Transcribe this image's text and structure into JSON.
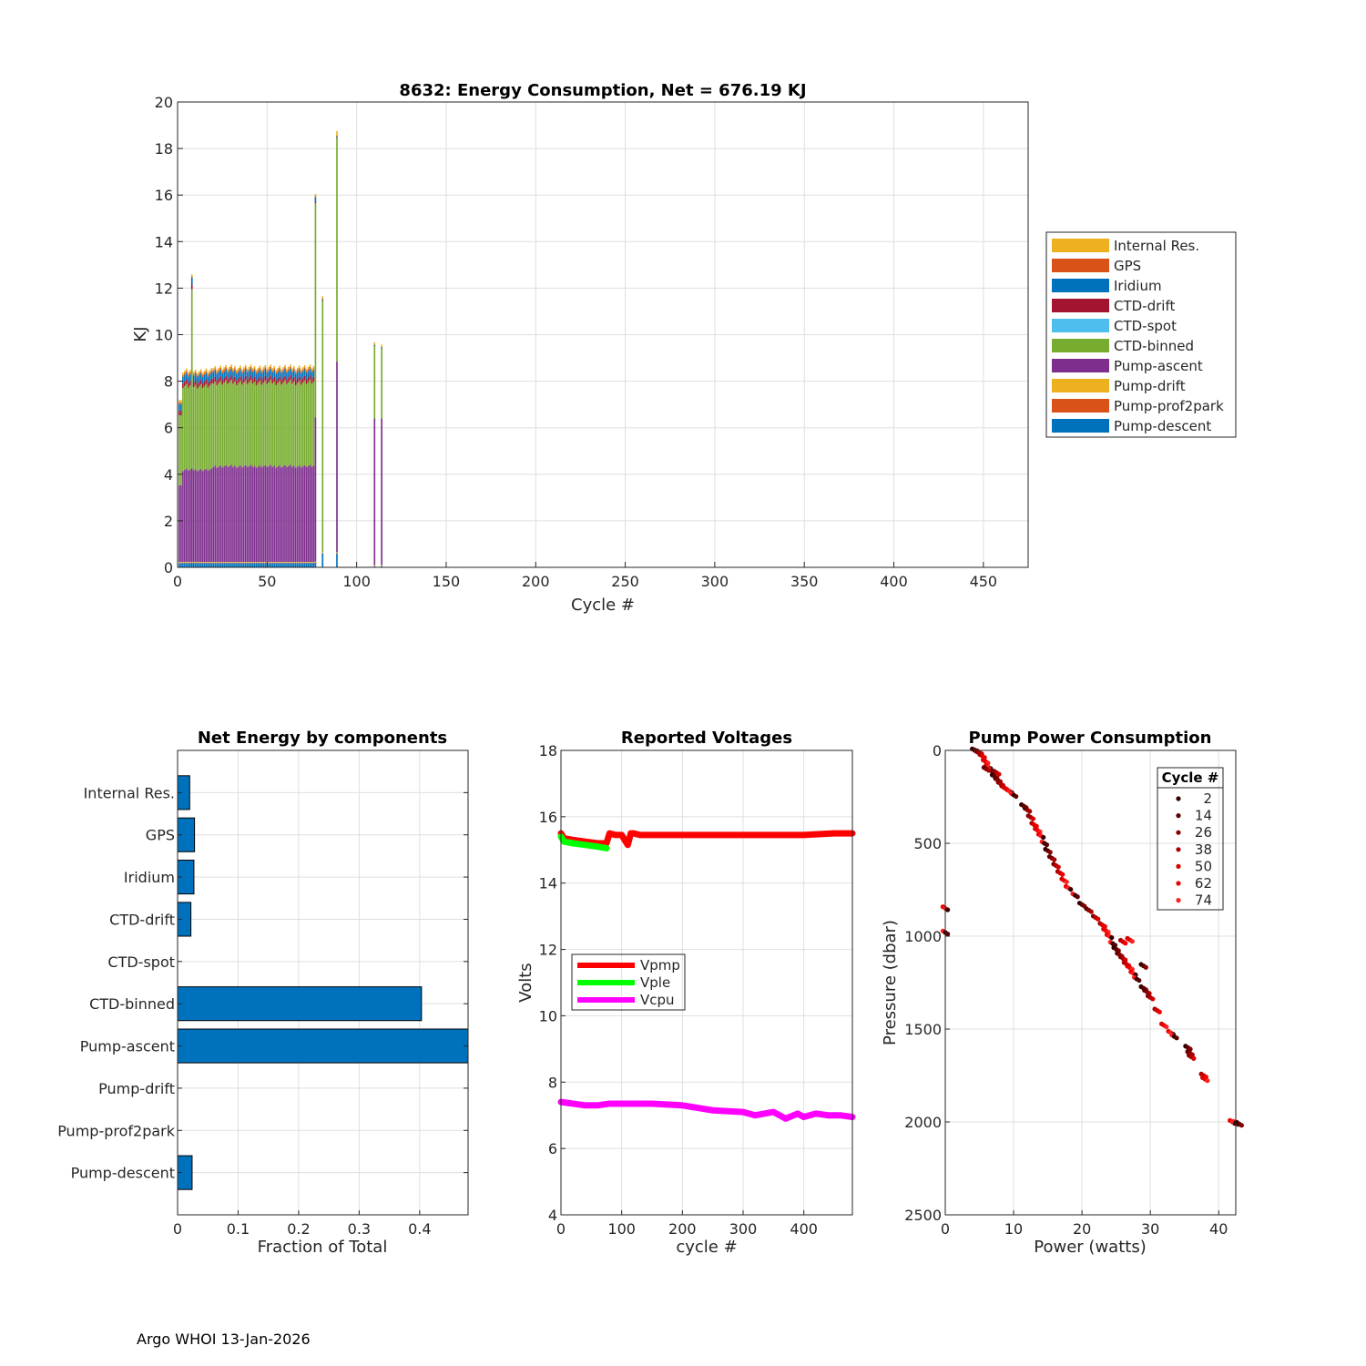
{
  "footer": "Argo WHOI 13-Jan-2026",
  "chart_data": [
    {
      "type": "bar",
      "stacked": true,
      "title": "8632: Energy Consumption,  Net = 676.19 KJ",
      "xlabel": "Cycle #",
      "ylabel": "KJ",
      "xlim": [
        0,
        475
      ],
      "ylim": [
        0,
        20
      ],
      "xticks": [
        0,
        50,
        100,
        150,
        200,
        250,
        300,
        350,
        400,
        450
      ],
      "yticks": [
        0,
        2,
        4,
        6,
        8,
        10,
        12,
        14,
        16,
        18,
        20
      ],
      "legend_position": "outside-right",
      "series": [
        {
          "name": "Internal Res.",
          "color": "#EDB120"
        },
        {
          "name": "GPS",
          "color": "#D95319"
        },
        {
          "name": "Iridium",
          "color": "#0072BD"
        },
        {
          "name": "CTD-drift",
          "color": "#A2142F"
        },
        {
          "name": "CTD-spot",
          "color": "#4DBEEE"
        },
        {
          "name": "CTD-binned",
          "color": "#77AC30"
        },
        {
          "name": "Pump-ascent",
          "color": "#7E2F8E"
        },
        {
          "name": "Pump-drift",
          "color": "#EDB120"
        },
        {
          "name": "Pump-prof2park",
          "color": "#D95319"
        },
        {
          "name": "Pump-descent",
          "color": "#0072BD"
        }
      ],
      "spikes": [
        {
          "cycle": 8,
          "total": 12.5
        },
        {
          "cycle": 77,
          "total": 16.0
        },
        {
          "cycle": 81,
          "total": 11.6
        },
        {
          "cycle": 89,
          "total": 18.5
        },
        {
          "cycle": 110,
          "total": 9.6
        },
        {
          "cycle": 114,
          "total": 9.5
        }
      ]
    },
    {
      "type": "bar",
      "orientation": "horizontal",
      "title": "Net Energy by components",
      "xlabel": "Fraction of Total",
      "xlim": [
        0,
        0.48
      ],
      "xticks": [
        "0",
        "0.1",
        "0.2",
        "0.3",
        "0.4"
      ],
      "categories": [
        "Internal Res.",
        "GPS",
        "Iridium",
        "CTD-drift",
        "CTD-spot",
        "CTD-binned",
        "Pump-ascent",
        "Pump-drift",
        "Pump-prof2park",
        "Pump-descent"
      ],
      "values": [
        0.02,
        0.028,
        0.027,
        0.022,
        0,
        0.403,
        0.48,
        0,
        0,
        0.024
      ],
      "color": "#0072BD"
    },
    {
      "type": "line",
      "title": "Reported Voltages",
      "xlabel": "cycle #",
      "ylabel": "Volts",
      "xlim": [
        0,
        480
      ],
      "ylim": [
        4,
        18
      ],
      "xticks": [
        0,
        100,
        200,
        300,
        400
      ],
      "yticks": [
        4,
        6,
        8,
        10,
        12,
        14,
        16,
        18
      ],
      "legend_position": "center-left",
      "series": [
        {
          "name": "Vpmp",
          "color": "#FF0000",
          "x": [
            0,
            5,
            20,
            40,
            60,
            75,
            80,
            90,
            100,
            110,
            115,
            120,
            130,
            150,
            200,
            250,
            300,
            350,
            400,
            450,
            480
          ],
          "y": [
            15.5,
            15.35,
            15.3,
            15.25,
            15.2,
            15.2,
            15.5,
            15.45,
            15.45,
            15.15,
            15.5,
            15.5,
            15.45,
            15.45,
            15.45,
            15.45,
            15.45,
            15.45,
            15.45,
            15.5,
            15.5
          ]
        },
        {
          "name": "Vple",
          "color": "#00FF00",
          "x": [
            0,
            5,
            20,
            40,
            60,
            75
          ],
          "y": [
            15.4,
            15.25,
            15.2,
            15.15,
            15.1,
            15.05
          ]
        },
        {
          "name": "Vcpu",
          "color": "#FF00FF",
          "x": [
            0,
            20,
            40,
            60,
            80,
            100,
            120,
            150,
            200,
            250,
            300,
            320,
            350,
            370,
            390,
            400,
            420,
            440,
            460,
            480
          ],
          "y": [
            7.4,
            7.35,
            7.3,
            7.3,
            7.35,
            7.35,
            7.35,
            7.35,
            7.3,
            7.15,
            7.1,
            7.0,
            7.1,
            6.9,
            7.05,
            6.95,
            7.05,
            7.0,
            7.0,
            6.95
          ]
        }
      ]
    },
    {
      "type": "scatter",
      "title": "Pump Power Consumption",
      "xlabel": "Power (watts)",
      "ylabel": "Pressure (dbar)",
      "xlim": [
        0,
        42.5
      ],
      "ylim": [
        0,
        2500
      ],
      "y_reversed": true,
      "xticks": [
        0,
        10,
        20,
        30,
        40
      ],
      "yticks": [
        0,
        500,
        1000,
        1500,
        2000,
        2500
      ],
      "legend_title": "Cycle #",
      "legend_position": "top-right",
      "legend_entries": [
        {
          "label": "2",
          "color": "#330000"
        },
        {
          "label": "14",
          "color": "#5c0000"
        },
        {
          "label": "26",
          "color": "#850000"
        },
        {
          "label": "38",
          "color": "#ad0000"
        },
        {
          "label": "50",
          "color": "#d60000"
        },
        {
          "label": "62",
          "color": "#f00000"
        },
        {
          "label": "74",
          "color": "#ff2020"
        }
      ],
      "points_x": [
        4.3,
        4.6,
        5.0,
        5.4,
        5.9,
        6.3,
        6.8,
        7.2,
        7.7,
        8.1,
        8.6,
        9.0,
        9.4,
        10.0,
        11.5,
        12.0,
        12.5,
        13.0,
        13.5,
        14.0,
        14.5,
        15.0,
        15.6,
        16.2,
        16.8,
        17.4,
        18.0,
        19.0,
        20.0,
        21.0,
        22.0,
        23.0,
        23.5,
        24.0,
        24.5,
        25.0,
        25.5,
        26.0,
        26.5,
        27.0,
        27.5,
        28.0,
        29.0,
        29.5,
        30.0,
        31.0,
        32.0,
        33.0,
        33.5,
        35.5,
        35.8,
        36.0,
        37.8,
        38.0,
        42.0,
        42.5,
        43.0,
        6.0,
        7.5,
        26.0,
        27.0,
        0.0,
        0.0,
        29.0
      ],
      "points_y": [
        0,
        5,
        10,
        30,
        60,
        90,
        110,
        140,
        160,
        180,
        200,
        210,
        220,
        240,
        300,
        320,
        360,
        400,
        430,
        460,
        500,
        540,
        580,
        620,
        660,
        700,
        740,
        780,
        830,
        860,
        900,
        940,
        970,
        1000,
        1040,
        1070,
        1100,
        1120,
        1150,
        1170,
        1200,
        1230,
        1280,
        1300,
        1330,
        1400,
        1480,
        1520,
        1540,
        1600,
        1630,
        1650,
        1750,
        1770,
        2000,
        2005,
        2010,
        100,
        120,
        1030,
        1020,
        850,
        980,
        1160
      ]
    }
  ]
}
